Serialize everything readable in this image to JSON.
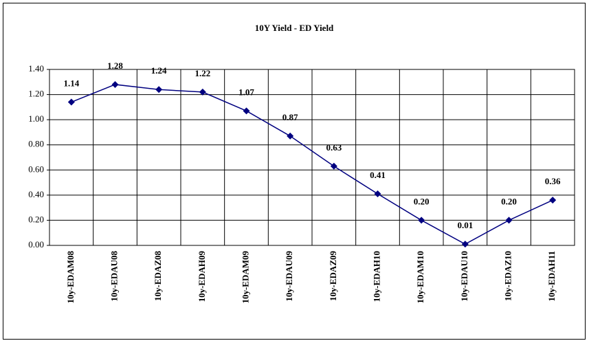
{
  "chart_data": {
    "type": "line",
    "title": "10Y Yield - ED Yield",
    "categories": [
      "10y-EDAM08",
      "10y-EDAU08",
      "10y-EDAZ08",
      "10y-EDAH09",
      "10y-EDAM09",
      "10y-EDAU09",
      "10y-EDAZ09",
      "10y-EDAH10",
      "10y-EDAM10",
      "10y-EDAU10",
      "10y-EDAZ10",
      "10y-EDAH11"
    ],
    "series": [
      {
        "name": "10Y Yield - ED Yield",
        "color": "#000080",
        "values": [
          1.14,
          1.28,
          1.24,
          1.22,
          1.07,
          0.87,
          0.63,
          0.41,
          0.2,
          0.01,
          0.2,
          0.36
        ],
        "value_labels": [
          "1.14",
          "1.28",
          "1.24",
          "1.22",
          "1.07",
          "0.87",
          "0.63",
          "0.41",
          "0.20",
          "0.01",
          "0.20",
          "0.36"
        ]
      }
    ],
    "ylim": [
      0,
      1.4
    ],
    "yticks": [
      {
        "value": 0,
        "label": "0.00"
      },
      {
        "value": 0.2,
        "label": "0.20"
      },
      {
        "value": 0.4,
        "label": "0.40"
      },
      {
        "value": 0.6,
        "label": "0.60"
      },
      {
        "value": 0.8,
        "label": "0.80"
      },
      {
        "value": 1,
        "label": "1.00"
      },
      {
        "value": 1.2,
        "label": "1.20"
      },
      {
        "value": 1.4,
        "label": "1.40"
      }
    ],
    "grid": true
  }
}
